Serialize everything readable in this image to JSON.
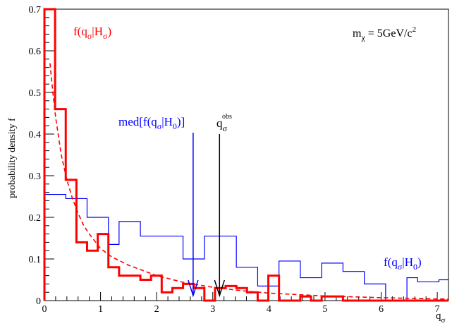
{
  "chart_data": {
    "type": "line",
    "ylabel": "probability density f",
    "xlabel": "q",
    "xlabel_sub": "σ",
    "xlim": [
      0,
      7.2
    ],
    "ylim": [
      0,
      0.7
    ],
    "x_ticks": [
      0,
      1,
      2,
      3,
      4,
      5,
      6,
      7
    ],
    "y_ticks": [
      0,
      0.1,
      0.2,
      0.3,
      0.4,
      0.5,
      0.6,
      0.7
    ],
    "bin_edges": [
      0,
      0.19,
      0.38,
      0.57,
      0.76,
      0.95,
      1.14,
      1.33,
      1.52,
      1.71,
      1.9,
      2.09,
      2.28,
      2.47,
      2.66,
      2.85,
      3.04,
      3.23,
      3.42,
      3.61,
      3.8,
      3.99,
      4.18,
      4.37,
      4.56,
      4.75,
      4.94,
      5.13,
      5.32,
      5.51,
      5.7,
      5.89,
      6.08,
      6.27,
      6.46,
      6.65,
      6.84,
      7.03,
      7.2
    ],
    "series": [
      {
        "name": "f(q_σ|H_σ)",
        "color": "#ff0000",
        "style": "thick-step",
        "values": [
          0.7,
          0.46,
          0.29,
          0.14,
          0.12,
          0.16,
          0.08,
          0.06,
          0.06,
          0.05,
          0.06,
          0.02,
          0.03,
          0.04,
          0.03,
          0.0,
          0.03,
          0.035,
          0.03,
          0.02,
          0.0,
          0.06,
          0.0,
          0.0,
          0.01,
          0.0,
          0.01,
          0.01,
          0.0,
          0.0,
          0.0,
          0.0,
          0.0,
          0.0,
          0.0,
          0.0,
          0.0,
          0.0
        ]
      },
      {
        "name": "f(q_σ|H_0)",
        "color": "#0000ff",
        "style": "thin-step",
        "values": [
          0.255,
          0.255,
          0.245,
          0.245,
          0.2,
          0.2,
          0.135,
          0.19,
          0.19,
          0.155,
          0.155,
          0.155,
          0.155,
          0.1,
          0.1,
          0.155,
          0.155,
          0.155,
          0.08,
          0.08,
          0.035,
          0.035,
          0.095,
          0.095,
          0.055,
          0.055,
          0.09,
          0.09,
          0.07,
          0.07,
          0.04,
          0.04,
          0.0,
          0.0,
          0.055,
          0.045,
          0.045,
          0.05
        ]
      },
      {
        "name": "fit",
        "color": "#ff0000",
        "style": "dashed-curve",
        "x": [
          0.1,
          0.15,
          0.2,
          0.3,
          0.4,
          0.5,
          0.6,
          0.7,
          0.8,
          1.0,
          1.2,
          1.5,
          2.0,
          2.5,
          3.0,
          3.5,
          4.0,
          5.0,
          6.0,
          7.0,
          7.2
        ],
        "y": [
          0.57,
          0.5,
          0.44,
          0.35,
          0.29,
          0.245,
          0.21,
          0.18,
          0.16,
          0.125,
          0.105,
          0.085,
          0.06,
          0.043,
          0.032,
          0.024,
          0.018,
          0.011,
          0.007,
          0.004,
          0.004
        ]
      }
    ],
    "annotations": {
      "red_label": {
        "main": "f(q",
        "sub1": "σ",
        "mid": "|H",
        "sub2": "σ",
        "end": ")"
      },
      "blue_label": {
        "main": "f(q",
        "sub1": "σ",
        "mid": "|H",
        "sub2": "0",
        "end": ")"
      },
      "median_label": {
        "main": "med[f(q",
        "sub1": "σ",
        "mid": "|H",
        "sub2": "0",
        "end": ")]",
        "x": 2.65,
        "color": "#0000ff"
      },
      "obs_label": {
        "main": "q",
        "sub": "σ",
        "sup": "obs",
        "x": 3.12,
        "color": "#000000"
      },
      "mass_label": {
        "main": "m",
        "sub": "χ",
        "rest": " = 5GeV/c",
        "sup": "2"
      }
    }
  }
}
